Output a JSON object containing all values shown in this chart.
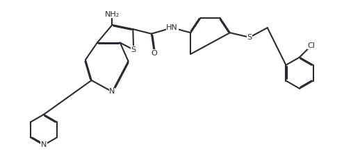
{
  "bg_color": "#ffffff",
  "line_color": "#2a2a35",
  "line_width": 1.5,
  "figsize": [
    5.18,
    2.31
  ],
  "dpi": 100,
  "xlim": [
    0,
    10
  ],
  "ylim": [
    0,
    4.5
  ],
  "labels": {
    "NH2": "NH₂",
    "HN": "HN",
    "O": "O",
    "S": "S",
    "N": "N",
    "Cl": "Cl"
  }
}
